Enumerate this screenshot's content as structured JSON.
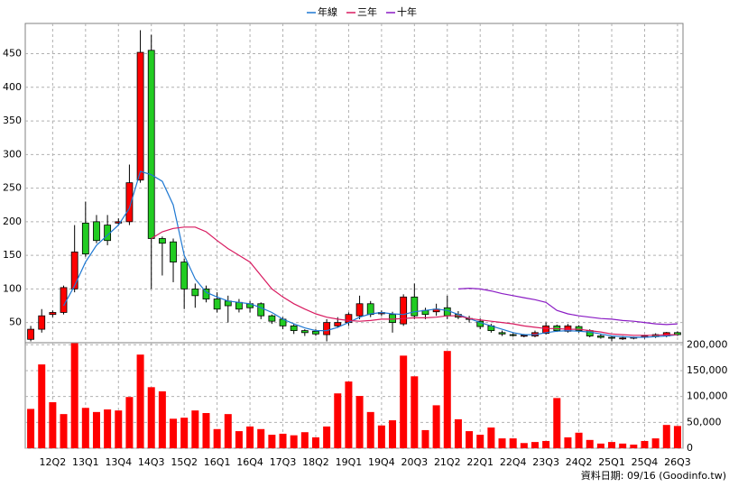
{
  "chart_data": {
    "type": "candlestick",
    "legend_position": "top",
    "grid": true,
    "up_color": "#ff0000",
    "down_color": "#22cc22",
    "categories": [
      null,
      null,
      "12Q2",
      null,
      null,
      "13Q1",
      null,
      null,
      "13Q4",
      null,
      null,
      "14Q3",
      null,
      null,
      "15Q2",
      null,
      null,
      "16Q1",
      null,
      null,
      "16Q4",
      null,
      null,
      "17Q3",
      null,
      null,
      "18Q2",
      null,
      null,
      "19Q1",
      null,
      null,
      "19Q4",
      null,
      null,
      "20Q3",
      null,
      null,
      "21Q2",
      null,
      null,
      "22Q1",
      null,
      null,
      "22Q4",
      null,
      null,
      "23Q3",
      null,
      null,
      "24Q2",
      null,
      null,
      "25Q1",
      null,
      null,
      "25Q4",
      null,
      null,
      "26Q3"
    ],
    "open": [
      25,
      40,
      62,
      65,
      100,
      198,
      200,
      195,
      198,
      200,
      262,
      455,
      175,
      170,
      140,
      100,
      100,
      85,
      82,
      80,
      78,
      78,
      60,
      55,
      45,
      38,
      37,
      32,
      45,
      50,
      60,
      78,
      63,
      62,
      48,
      88,
      68,
      66,
      72,
      62,
      56,
      52,
      45,
      35,
      32,
      30,
      30,
      34,
      45,
      37,
      44,
      38,
      30,
      28,
      27,
      27,
      28,
      32,
      30,
      35
    ],
    "close": [
      40,
      60,
      65,
      102,
      155,
      152,
      172,
      172,
      200,
      258,
      452,
      175,
      168,
      140,
      100,
      90,
      85,
      70,
      75,
      70,
      72,
      60,
      52,
      45,
      38,
      35,
      33,
      50,
      50,
      62,
      78,
      62,
      65,
      50,
      88,
      60,
      62,
      70,
      60,
      58,
      55,
      44,
      38,
      33,
      31,
      31,
      35,
      45,
      38,
      45,
      38,
      30,
      28,
      27,
      27,
      28,
      30,
      29,
      35,
      32
    ],
    "high": [
      45,
      70,
      68,
      105,
      195,
      230,
      210,
      210,
      205,
      285,
      485,
      478,
      178,
      175,
      145,
      108,
      105,
      95,
      90,
      85,
      82,
      80,
      62,
      58,
      48,
      40,
      40,
      55,
      58,
      65,
      90,
      82,
      68,
      66,
      92,
      108,
      72,
      78,
      90,
      67,
      60,
      56,
      48,
      38,
      34,
      33,
      38,
      50,
      47,
      48,
      46,
      40,
      33,
      30,
      30,
      29,
      31,
      34,
      36,
      37
    ],
    "low": [
      22,
      35,
      58,
      62,
      95,
      148,
      168,
      165,
      195,
      195,
      258,
      100,
      120,
      110,
      70,
      72,
      80,
      65,
      50,
      65,
      65,
      55,
      48,
      40,
      33,
      30,
      30,
      22,
      42,
      45,
      55,
      58,
      60,
      35,
      45,
      55,
      55,
      60,
      55,
      55,
      50,
      40,
      35,
      30,
      29,
      28,
      28,
      32,
      36,
      35,
      35,
      28,
      26,
      22,
      24,
      25,
      26,
      27,
      28,
      30
    ],
    "ylim": [
      20,
      495
    ],
    "yticks": [
      50,
      100,
      150,
      200,
      250,
      300,
      350,
      400,
      450
    ],
    "series": [
      {
        "name": "年線",
        "color": "#1e78d2",
        "values": [
          null,
          null,
          null,
          75,
          105,
          140,
          165,
          180,
          195,
          220,
          275,
          270,
          260,
          225,
          150,
          115,
          95,
          88,
          82,
          80,
          78,
          72,
          65,
          55,
          48,
          42,
          38,
          38,
          43,
          50,
          58,
          63,
          65,
          63,
          62,
          66,
          68,
          70,
          68,
          62,
          56,
          50,
          45,
          40,
          35,
          32,
          32,
          35,
          37,
          38,
          37,
          36,
          33,
          30,
          29,
          28,
          28,
          29,
          30,
          32
        ]
      },
      {
        "name": "三年",
        "color": "#d81b60",
        "values": [
          null,
          null,
          null,
          null,
          null,
          null,
          null,
          null,
          null,
          null,
          null,
          175,
          185,
          190,
          192,
          192,
          185,
          172,
          160,
          150,
          140,
          120,
          100,
          88,
          78,
          70,
          63,
          58,
          55,
          53,
          52,
          53,
          55,
          55,
          56,
          57,
          57,
          58,
          60,
          60,
          56,
          54,
          52,
          50,
          48,
          45,
          43,
          41,
          41,
          40,
          40,
          38,
          36,
          33,
          32,
          31,
          31,
          31,
          32,
          32
        ]
      },
      {
        "name": "十年",
        "color": "#8a1bc4",
        "values": [
          null,
          null,
          null,
          null,
          null,
          null,
          null,
          null,
          null,
          null,
          null,
          null,
          null,
          null,
          null,
          null,
          null,
          null,
          null,
          null,
          null,
          null,
          null,
          null,
          null,
          null,
          null,
          null,
          null,
          null,
          null,
          null,
          null,
          null,
          null,
          null,
          null,
          null,
          null,
          100,
          101,
          100,
          97,
          93,
          90,
          87,
          84,
          80,
          68,
          63,
          60,
          58,
          56,
          55,
          53,
          52,
          50,
          48,
          47,
          48
        ]
      }
    ],
    "volume": {
      "color": "#ff0000",
      "values": [
        76000,
        162000,
        89000,
        66000,
        203000,
        78000,
        70000,
        75000,
        73000,
        99000,
        181000,
        118000,
        110000,
        57000,
        59000,
        73000,
        68000,
        37000,
        66000,
        33000,
        42000,
        37000,
        26000,
        28000,
        25000,
        31000,
        21000,
        42000,
        106000,
        129000,
        101000,
        70000,
        44000,
        54000,
        179000,
        139000,
        35000,
        83000,
        188000,
        56000,
        33000,
        26000,
        40000,
        19000,
        19000,
        10000,
        12000,
        14000,
        97000,
        21000,
        30000,
        16000,
        9000,
        12000,
        9000,
        7000,
        14000,
        19000,
        45000,
        43000
      ]
    },
    "y2lim": [
      0,
      204000
    ],
    "y2ticks": [
      0,
      {
        "value": 50000,
        "label": "50,000"
      },
      {
        "value": 100000,
        "label": "100,000"
      },
      {
        "value": 150000,
        "label": "150,000"
      },
      {
        "value": 200000,
        "label": "200,000"
      }
    ],
    "footnote": "資料日期: 09/16 (Goodinfo.tw)"
  }
}
